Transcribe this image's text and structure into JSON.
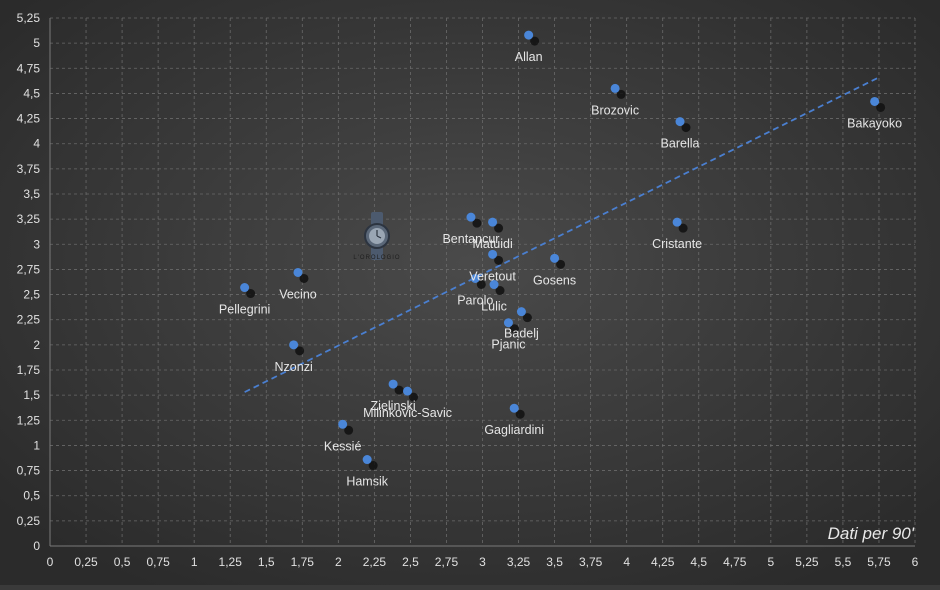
{
  "note": "Dati per 90'",
  "logo": {
    "text": "L'OROLOGIO"
  },
  "colors": {
    "background": "#3a3a3a",
    "grid": "#6a6a6a",
    "point": "#4a86d8",
    "trendline": "#4a7fd0",
    "label": "#e6e6e6"
  },
  "chart_data": {
    "type": "scatter",
    "xlim": [
      0,
      6
    ],
    "ylim": [
      0,
      5.25
    ],
    "x_ticks": [
      "0",
      "0,25",
      "0,5",
      "0,75",
      "1",
      "1,25",
      "1,5",
      "1,75",
      "2",
      "2,25",
      "2,5",
      "2,75",
      "3",
      "3,25",
      "3,5",
      "3,75",
      "4",
      "4,25",
      "4,5",
      "4,75",
      "5",
      "5,25",
      "5,5",
      "5,75",
      "6"
    ],
    "y_ticks": [
      "0",
      "0,25",
      "0,5",
      "0,75",
      "1",
      "1,25",
      "1,5",
      "1,75",
      "2",
      "2,25",
      "2,5",
      "2,75",
      "3",
      "3,25",
      "3,5",
      "3,75",
      "4",
      "4,25",
      "4,5",
      "4,75",
      "5",
      "5,25"
    ],
    "grid": true,
    "trendline": {
      "style": "dashed",
      "x": [
        1.35,
        5.75
      ],
      "y": [
        1.53,
        4.66
      ]
    },
    "points": [
      {
        "label": "Allan",
        "x": 3.32,
        "y": 5.08
      },
      {
        "label": "Brozovic",
        "x": 3.92,
        "y": 4.55
      },
      {
        "label": "Barella",
        "x": 4.37,
        "y": 4.22
      },
      {
        "label": "Bakayoko",
        "x": 5.72,
        "y": 4.42
      },
      {
        "label": "Bentancur",
        "x": 2.92,
        "y": 3.27
      },
      {
        "label": "Matuidi",
        "x": 3.07,
        "y": 3.22
      },
      {
        "label": "Cristante",
        "x": 4.35,
        "y": 3.22
      },
      {
        "label": "Veretout",
        "x": 3.07,
        "y": 2.9
      },
      {
        "label": "Gosens",
        "x": 3.5,
        "y": 2.86
      },
      {
        "label": "Vecino",
        "x": 1.72,
        "y": 2.72
      },
      {
        "label": "Parolo",
        "x": 2.95,
        "y": 2.66
      },
      {
        "label": "Lulic",
        "x": 3.08,
        "y": 2.6
      },
      {
        "label": "Pellegrini",
        "x": 1.35,
        "y": 2.57
      },
      {
        "label": "Badelj",
        "x": 3.27,
        "y": 2.33
      },
      {
        "label": "Pjanic",
        "x": 3.18,
        "y": 2.22
      },
      {
        "label": "Nzonzi",
        "x": 1.69,
        "y": 2.0
      },
      {
        "label": "Zielinski",
        "x": 2.38,
        "y": 1.61
      },
      {
        "label": "Milinkovic-Savic",
        "x": 2.48,
        "y": 1.54
      },
      {
        "label": "Gagliardini",
        "x": 3.22,
        "y": 1.37
      },
      {
        "label": "Kessié",
        "x": 2.03,
        "y": 1.21
      },
      {
        "label": "Hamsik",
        "x": 2.2,
        "y": 0.86
      }
    ]
  }
}
